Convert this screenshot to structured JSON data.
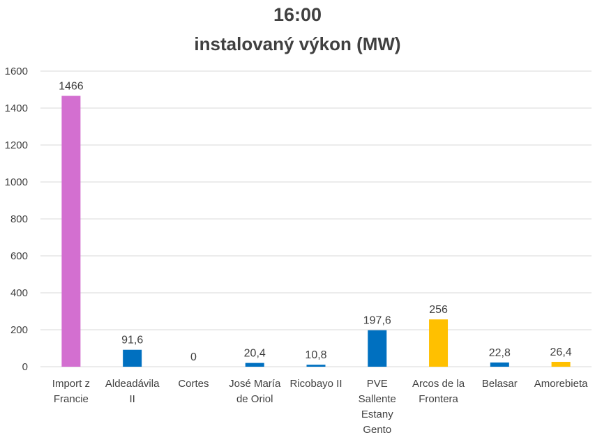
{
  "chart_data": {
    "type": "bar",
    "title": "16:00",
    "subtitle": "instalovaný výkon (MW)",
    "xlabel": "",
    "ylabel": "",
    "ylim": [
      0,
      1600
    ],
    "yticks": [
      0,
      200,
      400,
      600,
      800,
      1000,
      1200,
      1400,
      1600
    ],
    "grid": true,
    "legend": "none",
    "categories": [
      [
        "Import z",
        "Francie"
      ],
      [
        "Aldeadávila",
        "II"
      ],
      [
        "Cortes"
      ],
      [
        "José María",
        "de Oriol"
      ],
      [
        "Ricobayo II"
      ],
      [
        "PVE",
        "Sallente",
        "Estany",
        "Gento"
      ],
      [
        "Arcos de la",
        "Frontera"
      ],
      [
        "Belasar"
      ],
      [
        "Amorebieta"
      ]
    ],
    "values": [
      1466,
      91.6,
      0,
      20.4,
      10.8,
      197.6,
      256,
      22.8,
      26.4
    ],
    "data_labels": [
      "1466",
      "91,6",
      "0",
      "20,4",
      "10,8",
      "197,6",
      "256",
      "22,8",
      "26,4"
    ],
    "bar_colors": [
      "#d36fd0",
      "#0070c0",
      "#0070c0",
      "#0070c0",
      "#0070c0",
      "#0070c0",
      "#ffc000",
      "#0070c0",
      "#ffc000"
    ],
    "colors": {
      "grid": "#d9d9d9",
      "text": "#404040"
    }
  }
}
